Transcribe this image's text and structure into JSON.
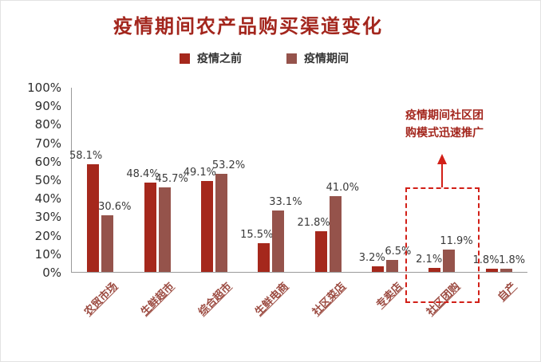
{
  "title": "疫情期间农产品购买渠道变化",
  "annotation": {
    "line1": "疫情期间社区团",
    "line2": "购模式迅速推广"
  },
  "colors": {
    "title": "#a3261d",
    "series_before": "#a5281c",
    "series_during": "#95534b",
    "highlight_box": "#d22018",
    "axis": "#9a9a9a",
    "category_label": "#9b4a40"
  },
  "chart_data": {
    "type": "bar",
    "title": "疫情期间农产品购买渠道变化",
    "categories": [
      "农贸市场",
      "生鲜超市",
      "综合超市",
      "生鲜电商",
      "社区菜店",
      "专卖店",
      "社区团购",
      "自产"
    ],
    "series": [
      {
        "name": "疫情之前",
        "color": "#a5281c",
        "values": [
          58.1,
          48.4,
          49.1,
          15.5,
          21.8,
          3.2,
          2.1,
          1.8
        ]
      },
      {
        "name": "疫情期间",
        "color": "#95534b",
        "values": [
          30.6,
          45.7,
          53.2,
          33.1,
          41.0,
          6.5,
          11.9,
          1.8
        ]
      }
    ],
    "value_labels": [
      [
        "58.1%",
        "48.4%",
        "49.1%",
        "15.5%",
        "21.8%",
        "3.2%",
        "2.1%",
        "1.8%"
      ],
      [
        "30.6%",
        "45.7%",
        "53.2%",
        "33.1%",
        "41.0%",
        "6.5%",
        "11.9%",
        "1.8%"
      ]
    ],
    "xlabel": "",
    "ylabel": "",
    "ylim": [
      0,
      100
    ],
    "y_tick_step": 10,
    "y_ticks": [
      "0%",
      "10%",
      "20%",
      "30%",
      "40%",
      "50%",
      "60%",
      "70%",
      "80%",
      "90%",
      "100%"
    ],
    "grid": false,
    "legend_position": "top",
    "highlight": {
      "category": "社区团购",
      "annotation": "疫情期间社区团购模式迅速推广"
    }
  }
}
